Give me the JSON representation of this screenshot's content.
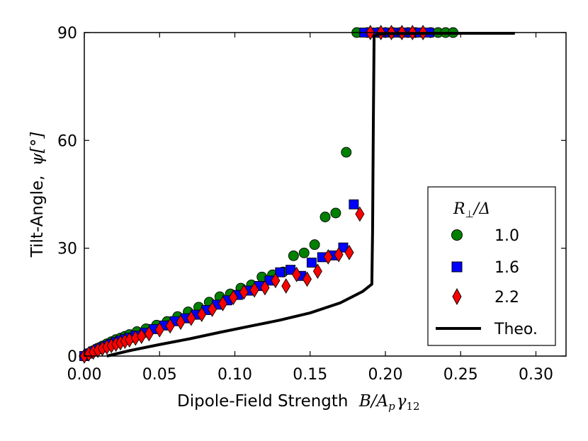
{
  "chart_data": {
    "type": "scatter",
    "xlabel_text": "Dipole-Field Strength",
    "xlabel_math": "B/A",
    "xlabel_math_sub1": "p",
    "xlabel_math_mid": "γ",
    "xlabel_math_sub2": "12",
    "ylabel_text": "Tilt-Angle,",
    "ylabel_math": "ψ[°]",
    "xlim": [
      0.0,
      0.32
    ],
    "ylim": [
      0,
      90
    ],
    "xticks": [
      0.0,
      0.05,
      0.1,
      0.15,
      0.2,
      0.25,
      0.3
    ],
    "xtick_labels": [
      "0.00",
      "0.05",
      "0.10",
      "0.15",
      "0.20",
      "0.25",
      "0.30"
    ],
    "yticks": [
      0,
      30,
      60,
      90
    ],
    "ytick_labels": [
      "0",
      "30",
      "60",
      "90"
    ],
    "grid": false,
    "legend": {
      "title_main": "R",
      "title_sub": "⊥",
      "title_rest": "/Δ",
      "placement": "bottom-right",
      "entries": [
        "1.0",
        "1.6",
        "2.2",
        "Theo."
      ]
    },
    "series": [
      {
        "name": "1.0",
        "marker": "circle",
        "color": "#008000",
        "x": [
          0.0,
          0.003,
          0.006,
          0.009,
          0.012,
          0.015,
          0.018,
          0.021,
          0.024,
          0.027,
          0.03,
          0.035,
          0.041,
          0.048,
          0.055,
          0.062,
          0.069,
          0.076,
          0.083,
          0.09,
          0.097,
          0.104,
          0.111,
          0.118,
          0.125,
          0.132,
          0.139,
          0.146,
          0.153,
          0.16,
          0.167,
          0.174,
          0.181,
          0.188,
          0.195,
          0.2,
          0.205,
          0.21,
          0.215,
          0.22,
          0.225,
          0.23,
          0.235,
          0.24,
          0.245
        ],
        "y": [
          0.0,
          0.8,
          1.5,
          2.2,
          2.8,
          3.4,
          4.0,
          4.6,
          5.0,
          5.5,
          6.0,
          6.8,
          7.6,
          8.6,
          9.6,
          11.0,
          12.3,
          13.6,
          15.0,
          16.5,
          17.3,
          18.9,
          19.8,
          22.0,
          22.6,
          23.4,
          27.9,
          28.7,
          31.0,
          38.7,
          39.8,
          56.7,
          90,
          90,
          90,
          90,
          90,
          90,
          90,
          90,
          90,
          90,
          90,
          90,
          90
        ]
      },
      {
        "name": "1.6",
        "marker": "square",
        "color": "#0000ff",
        "x": [
          0.0,
          0.003,
          0.006,
          0.009,
          0.012,
          0.015,
          0.018,
          0.021,
          0.024,
          0.027,
          0.03,
          0.034,
          0.04,
          0.046,
          0.053,
          0.06,
          0.067,
          0.074,
          0.081,
          0.088,
          0.095,
          0.102,
          0.109,
          0.116,
          0.123,
          0.13,
          0.137,
          0.144,
          0.151,
          0.158,
          0.165,
          0.172,
          0.179,
          0.186,
          0.193,
          0.199,
          0.205,
          0.211,
          0.217,
          0.223,
          0.229
        ],
        "y": [
          0.0,
          0.7,
          1.3,
          1.9,
          2.4,
          2.9,
          3.4,
          3.9,
          4.3,
          4.7,
          5.1,
          5.7,
          6.5,
          7.5,
          8.5,
          9.7,
          10.5,
          11.5,
          12.8,
          14.3,
          15.5,
          17.0,
          18.2,
          19.5,
          21.0,
          23.3,
          24.0,
          22.3,
          26.0,
          27.5,
          28.0,
          30.2,
          42.2,
          90,
          90,
          90,
          90,
          90,
          90,
          90,
          90
        ]
      },
      {
        "name": "2.2",
        "marker": "diamond",
        "color": "#ff0000",
        "x": [
          0.0,
          0.003,
          0.006,
          0.009,
          0.012,
          0.015,
          0.018,
          0.021,
          0.024,
          0.027,
          0.03,
          0.034,
          0.038,
          0.043,
          0.05,
          0.057,
          0.064,
          0.071,
          0.078,
          0.085,
          0.092,
          0.099,
          0.106,
          0.113,
          0.12,
          0.127,
          0.134,
          0.141,
          0.148,
          0.155,
          0.162,
          0.169,
          0.176,
          0.183,
          0.19,
          0.197,
          0.204,
          0.211,
          0.218,
          0.225
        ],
        "y": [
          0.0,
          0.6,
          1.1,
          1.6,
          2.1,
          2.5,
          2.9,
          3.3,
          3.7,
          4.1,
          4.5,
          5.0,
          5.5,
          6.2,
          7.3,
          8.4,
          9.4,
          10.5,
          11.6,
          13.0,
          14.6,
          16.3,
          17.8,
          18.4,
          19.0,
          21.0,
          19.5,
          22.7,
          21.4,
          23.6,
          27.6,
          28.2,
          28.8,
          39.5,
          90,
          90,
          90,
          90,
          90,
          90
        ]
      },
      {
        "name": "Theo.",
        "marker": "line",
        "color": "#000000",
        "x": [
          0.015,
          0.03,
          0.05,
          0.07,
          0.09,
          0.11,
          0.13,
          0.15,
          0.17,
          0.185,
          0.191,
          0.1915,
          0.192,
          0.1925,
          0.195,
          0.2,
          0.24,
          0.286
        ],
        "y": [
          0.0,
          1.5,
          3.2,
          4.8,
          6.6,
          8.3,
          10.0,
          12.0,
          14.8,
          18.0,
          20.0,
          35.0,
          65.0,
          89.0,
          89.5,
          89.7,
          89.8,
          89.8
        ]
      }
    ]
  }
}
